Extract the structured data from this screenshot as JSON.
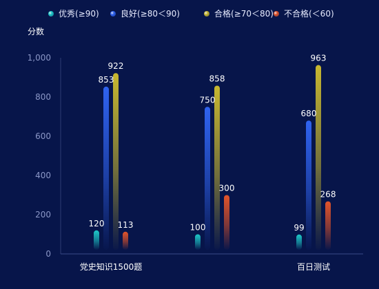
{
  "chart_data": {
    "type": "bar",
    "ylabel": "分数",
    "ylim": [
      0,
      1000
    ],
    "yticks": [
      0,
      200,
      400,
      600,
      800,
      1000
    ],
    "ytick_labels": [
      "0",
      "200",
      "400",
      "600",
      "800",
      "1,000"
    ],
    "categories": [
      "党史知识1500题",
      "",
      "百日测试"
    ],
    "legend_position": "top",
    "grid": false,
    "series": [
      {
        "name": "优秀(≥90)",
        "color": "#1ec8c8",
        "values": [
          120,
          100,
          99
        ],
        "labels": [
          "120",
          "100",
          "99"
        ]
      },
      {
        "name": "良好(≥80＜90)",
        "color": "#2f63f0",
        "values": [
          853,
          750,
          680
        ],
        "labels": [
          "853",
          "750",
          "680"
        ]
      },
      {
        "name": "合格(≥70＜80)",
        "color": "#c8b830",
        "values": [
          922,
          858,
          963
        ],
        "labels": [
          "922",
          "858",
          "963"
        ]
      },
      {
        "name": "不合格(＜60)",
        "color": "#e2542a",
        "values": [
          113,
          300,
          268
        ],
        "labels": [
          "113",
          "300",
          "268"
        ]
      }
    ]
  }
}
